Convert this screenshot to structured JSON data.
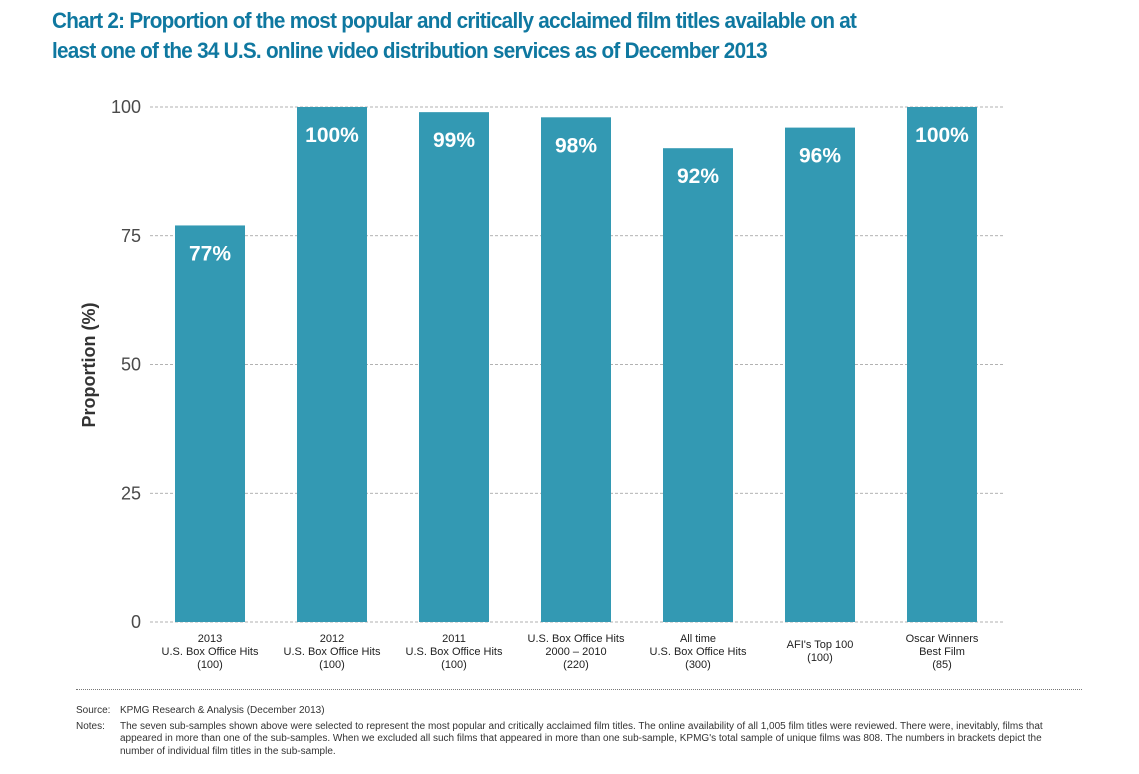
{
  "title_lines": [
    "Chart 2: Proportion of the most popular and critically acclaimed film titles available on at",
    "least one of the 34 U.S. online video distribution services as of December 2013"
  ],
  "chart_data": {
    "type": "bar",
    "categories": [
      [
        "2013",
        "U.S. Box Office Hits",
        "(100)"
      ],
      [
        "2012",
        "U.S. Box Office Hits",
        "(100)"
      ],
      [
        "2011",
        "U.S. Box Office Hits",
        "(100)"
      ],
      [
        "U.S. Box Office Hits",
        "2000 – 2010",
        "(220)"
      ],
      [
        "All time",
        "U.S. Box Office Hits",
        "(300)"
      ],
      [
        "AFI's Top 100",
        "(100)"
      ],
      [
        "Oscar Winners",
        "Best Film",
        "(85)"
      ]
    ],
    "values": [
      77,
      100,
      99,
      98,
      92,
      96,
      100
    ],
    "data_labels": [
      "77%",
      "100%",
      "99%",
      "98%",
      "92%",
      "96%",
      "100%"
    ],
    "ylabel": "Proportion (%)",
    "ylim": [
      0,
      100
    ],
    "yticks": [
      "0",
      "25",
      "50",
      "75",
      "100"
    ],
    "grid": true,
    "bar_color": "#3399b3"
  },
  "footer": {
    "source_label": "Source:",
    "source_text": "KPMG Research & Analysis (December 2013)",
    "notes_label": "Notes:",
    "notes_text": "The seven sub-samples shown above were selected to represent the most popular and critically acclaimed film titles. The online availability of all 1,005 film titles were reviewed. There were, inevitably, films that appeared in more than one of the sub-samples. When we excluded all such films that appeared in more than one sub-sample, KPMG's total sample of unique films was 808. The numbers in brackets depict the number of individual film titles in the sub-sample."
  },
  "colors": {
    "title": "#0f78a0",
    "bar": "#3399b3",
    "grid": "#999999"
  }
}
